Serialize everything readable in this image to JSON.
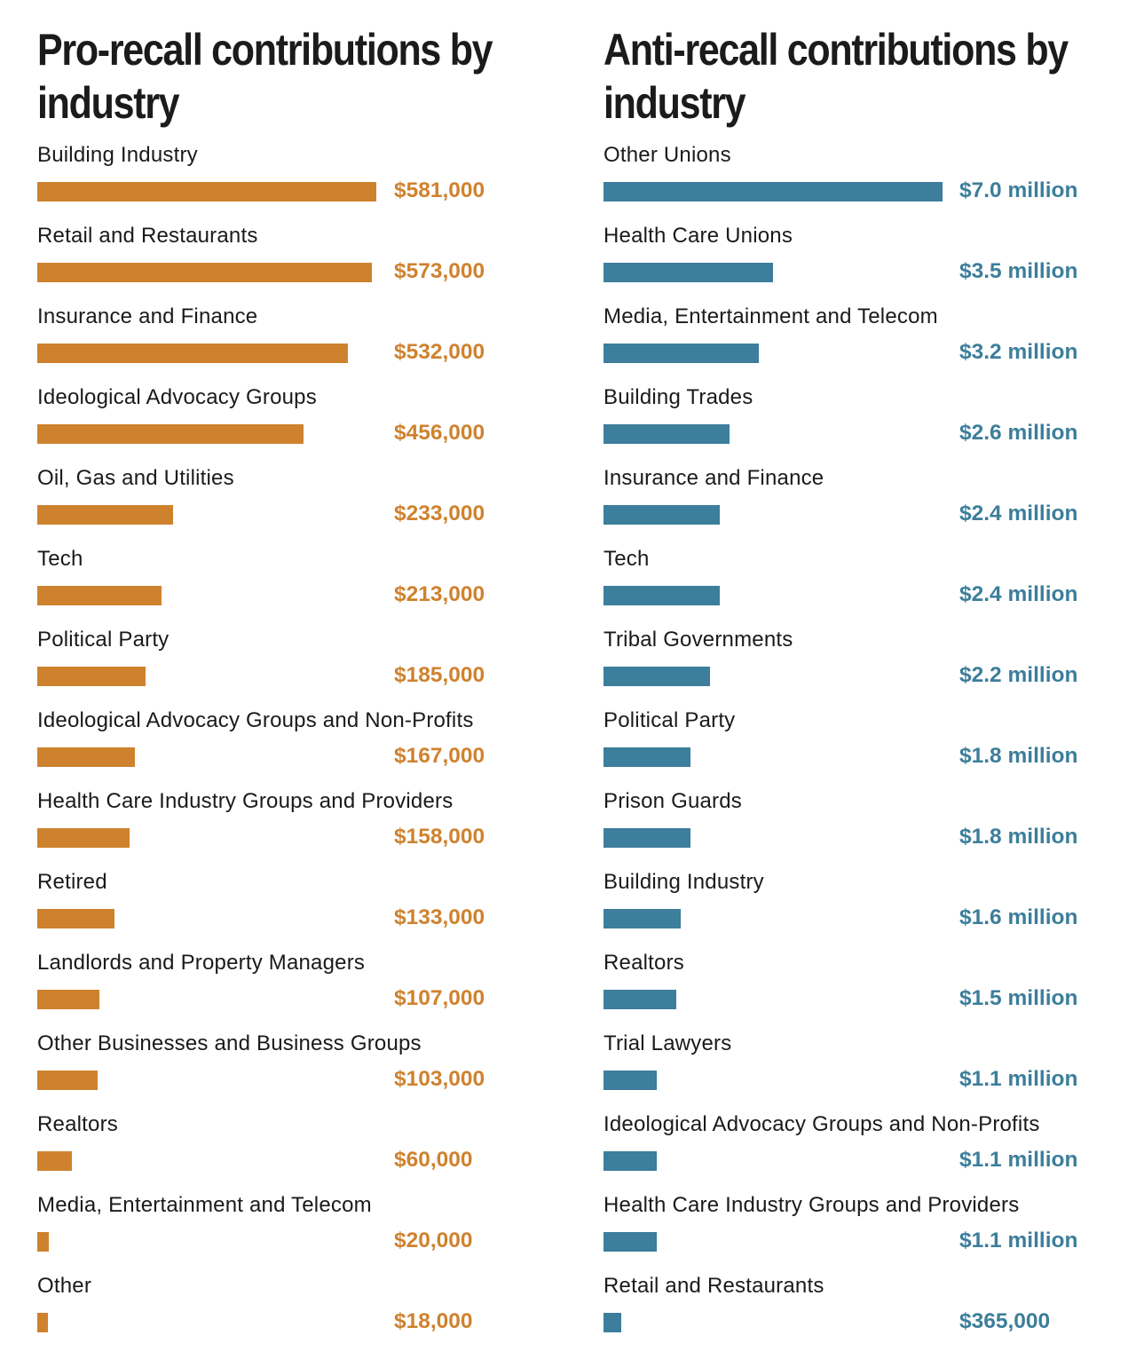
{
  "colors": {
    "pro": "#cf822e",
    "anti": "#3c7e9b"
  },
  "chart_data": [
    {
      "type": "bar",
      "orientation": "horizontal",
      "title": "Pro-recall contributions by industry",
      "unit": "USD",
      "categories": [
        "Building Industry",
        "Retail and Restaurants",
        "Insurance and Finance",
        "Ideological Advocacy Groups",
        "Oil, Gas and Utilities",
        "Tech",
        "Political Party",
        "Ideological Advocacy Groups and Non-Profits",
        "Health Care Industry Groups and Providers",
        "Retired",
        "Landlords and Property Managers",
        "Other Businesses and Business Groups",
        "Realtors",
        "Media, Entertainment and Telecom",
        "Other"
      ],
      "values": [
        581000,
        573000,
        532000,
        456000,
        233000,
        213000,
        185000,
        167000,
        158000,
        133000,
        107000,
        103000,
        60000,
        20000,
        18000
      ],
      "value_labels": [
        "$581,000",
        "$573,000",
        "$532,000",
        "$456,000",
        "$233,000",
        "$213,000",
        "$185,000",
        "$167,000",
        "$158,000",
        "$133,000",
        "$107,000",
        "$103,000",
        "$60,000",
        "$20,000",
        "$18,000"
      ],
      "color": "#cf822e",
      "grid": false
    },
    {
      "type": "bar",
      "orientation": "horizontal",
      "title": "Anti-recall contributions by industry",
      "unit": "USD",
      "categories": [
        "Other Unions",
        "Health Care Unions",
        "Media, Entertainment and Telecom",
        "Building Trades",
        "Insurance and Finance",
        "Tech",
        "Tribal Governments",
        "Political Party",
        "Prison Guards",
        "Building Industry",
        "Realtors",
        "Trial Lawyers",
        "Ideological Advocacy Groups and Non-Profits",
        "Health Care Industry Groups and Providers",
        "Retail and Restaurants"
      ],
      "values": [
        7000000,
        3500000,
        3200000,
        2600000,
        2400000,
        2400000,
        2200000,
        1800000,
        1800000,
        1600000,
        1500000,
        1100000,
        1100000,
        1100000,
        365000
      ],
      "value_labels": [
        "$7.0 million",
        "$3.5 million",
        "$3.2 million",
        "$2.6 million",
        "$2.4 million",
        "$2.4 million",
        "$2.2 million",
        "$1.8 million",
        "$1.8 million",
        "$1.6 million",
        "$1.5 million",
        "$1.1 million",
        "$1.1 million",
        "$1.1 million",
        "$365,000"
      ],
      "color": "#3c7e9b",
      "grid": false
    }
  ]
}
